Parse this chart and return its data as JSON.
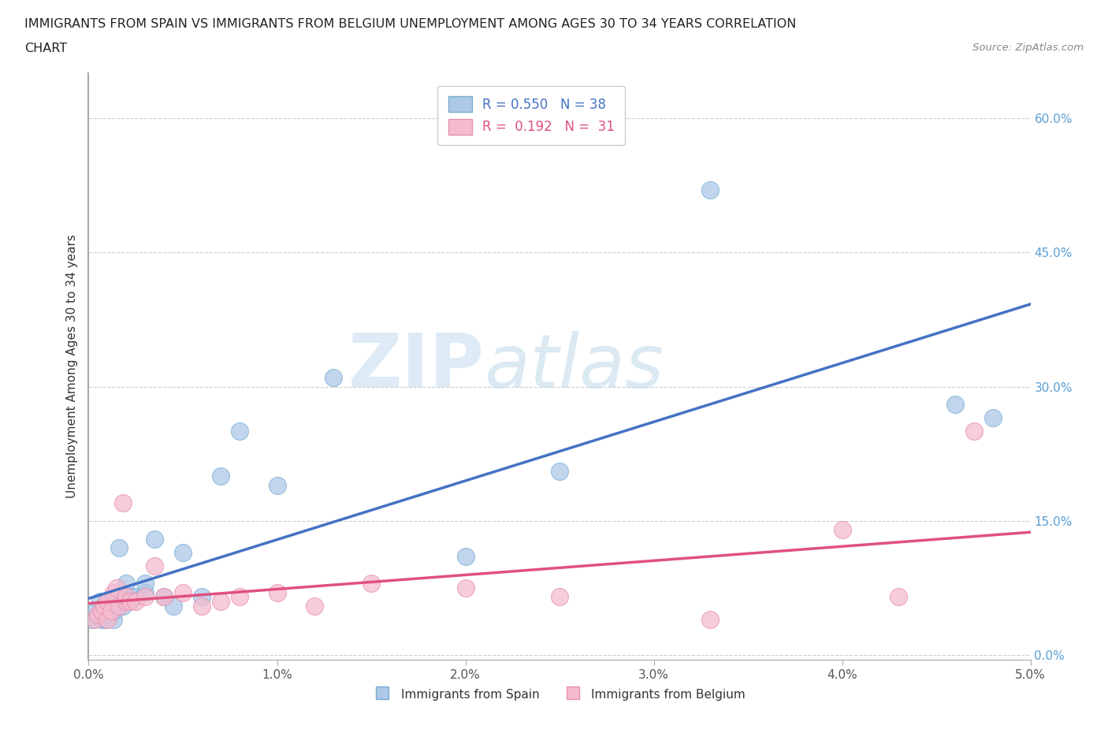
{
  "title_line1": "IMMIGRANTS FROM SPAIN VS IMMIGRANTS FROM BELGIUM UNEMPLOYMENT AMONG AGES 30 TO 34 YEARS CORRELATION",
  "title_line2": "CHART",
  "source": "Source: ZipAtlas.com",
  "ylabel": "Unemployment Among Ages 30 to 34 years",
  "xlim": [
    0.0,
    0.05
  ],
  "ylim": [
    -0.005,
    0.65
  ],
  "xticks": [
    0.0,
    0.01,
    0.02,
    0.03,
    0.04,
    0.05
  ],
  "xticklabels": [
    "0.0%",
    "1.0%",
    "2.0%",
    "3.0%",
    "4.0%",
    "5.0%"
  ],
  "yticks": [
    0.0,
    0.15,
    0.3,
    0.45,
    0.6
  ],
  "yticklabels": [
    "0.0%",
    "15.0%",
    "30.0%",
    "45.0%",
    "60.0%"
  ],
  "grid_color": "#cccccc",
  "background_color": "#ffffff",
  "legend_r_spain": "R = 0.550",
  "legend_n_spain": "N = 38",
  "legend_r_belgium": "R = 0.192",
  "legend_n_belgium": "N = 31",
  "spain_color": "#adc9e8",
  "spain_edge_color": "#7aaed4",
  "belgium_color": "#f5bcd0",
  "belgium_edge_color": "#e890b0",
  "spain_line_color": "#4472c4",
  "belgium_line_color": "#e05080",
  "watermark_zip": "ZIP",
  "watermark_atlas": "atlas",
  "spain_scatter_x": [
    0.0002,
    0.0004,
    0.0006,
    0.0006,
    0.0007,
    0.0008,
    0.0008,
    0.0009,
    0.001,
    0.001,
    0.001,
    0.0012,
    0.0013,
    0.0013,
    0.0014,
    0.0015,
    0.0016,
    0.0018,
    0.002,
    0.002,
    0.0022,
    0.0025,
    0.003,
    0.003,
    0.0035,
    0.004,
    0.0045,
    0.005,
    0.006,
    0.007,
    0.008,
    0.01,
    0.013,
    0.02,
    0.025,
    0.033,
    0.046,
    0.048
  ],
  "spain_scatter_y": [
    0.04,
    0.05,
    0.045,
    0.06,
    0.04,
    0.05,
    0.055,
    0.04,
    0.05,
    0.045,
    0.06,
    0.055,
    0.04,
    0.05,
    0.06,
    0.055,
    0.12,
    0.055,
    0.065,
    0.08,
    0.065,
    0.065,
    0.07,
    0.08,
    0.13,
    0.065,
    0.055,
    0.115,
    0.065,
    0.2,
    0.25,
    0.19,
    0.31,
    0.11,
    0.205,
    0.52,
    0.28,
    0.265
  ],
  "belgium_scatter_x": [
    0.0003,
    0.0005,
    0.0007,
    0.0008,
    0.001,
    0.001,
    0.0012,
    0.0013,
    0.0015,
    0.0016,
    0.0018,
    0.002,
    0.002,
    0.0022,
    0.0025,
    0.003,
    0.0035,
    0.004,
    0.005,
    0.006,
    0.007,
    0.008,
    0.01,
    0.012,
    0.015,
    0.02,
    0.025,
    0.033,
    0.04,
    0.043,
    0.047
  ],
  "belgium_scatter_y": [
    0.04,
    0.045,
    0.05,
    0.055,
    0.04,
    0.06,
    0.05,
    0.07,
    0.075,
    0.055,
    0.17,
    0.06,
    0.065,
    0.06,
    0.06,
    0.065,
    0.1,
    0.065,
    0.07,
    0.055,
    0.06,
    0.065,
    0.07,
    0.055,
    0.08,
    0.075,
    0.065,
    0.04,
    0.14,
    0.065,
    0.25
  ]
}
